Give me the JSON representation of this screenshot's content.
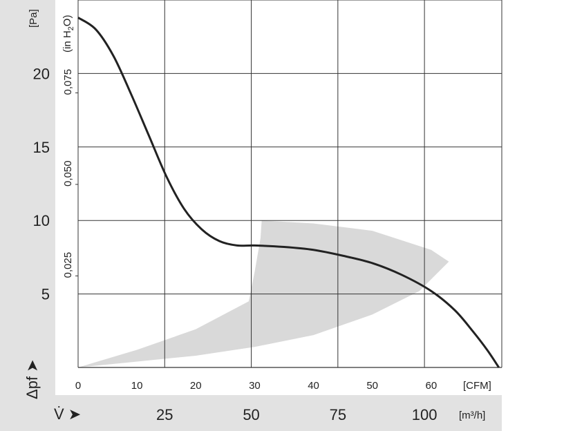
{
  "chart_data": {
    "type": "line",
    "title": "",
    "y_left": {
      "label": "[Pa]",
      "ticks": [
        5,
        10,
        15,
        20
      ],
      "range": [
        0,
        25
      ]
    },
    "y_inner": {
      "label": "(in H2O)",
      "label_parts": [
        "(in H",
        "2",
        "O)"
      ],
      "ticks": [
        "0,025",
        "0,050",
        "0,075"
      ],
      "tick_values": [
        0.025,
        0.05,
        0.075
      ]
    },
    "x_cfm": {
      "label": "[CFM]",
      "ticks": [
        0,
        10,
        20,
        30,
        40,
        50,
        60
      ],
      "range": [
        0,
        72
      ]
    },
    "x_m3h": {
      "label": "[m³/h]",
      "ticks": [
        25,
        50,
        75,
        100
      ]
    },
    "pressure_symbol": "Δpf ➤",
    "flow_symbol": "V̇ ➤",
    "series": [
      {
        "x": [
          0,
          3,
          6,
          9,
          12,
          15,
          18,
          21,
          24,
          27,
          30,
          35,
          40,
          45,
          50,
          55,
          60,
          64,
          67,
          69.5,
          71.5
        ],
        "y": [
          23.8,
          23.0,
          21.2,
          18.6,
          15.8,
          13.0,
          10.8,
          9.4,
          8.6,
          8.3,
          8.3,
          8.2,
          8.0,
          7.6,
          7.1,
          6.3,
          5.2,
          3.9,
          2.5,
          1.2,
          0
        ]
      }
    ],
    "operating_region": {
      "x": [
        0,
        10,
        20,
        29,
        30,
        31,
        31.2,
        40,
        50,
        60,
        63,
        58,
        50,
        40,
        30,
        20,
        10,
        0
      ],
      "y": [
        0,
        1.2,
        2.6,
        4.5,
        6.5,
        8.8,
        10.0,
        9.8,
        9.3,
        8.0,
        7.2,
        5.2,
        3.6,
        2.2,
        1.4,
        0.8,
        0.4,
        0
      ]
    },
    "grid": true
  }
}
